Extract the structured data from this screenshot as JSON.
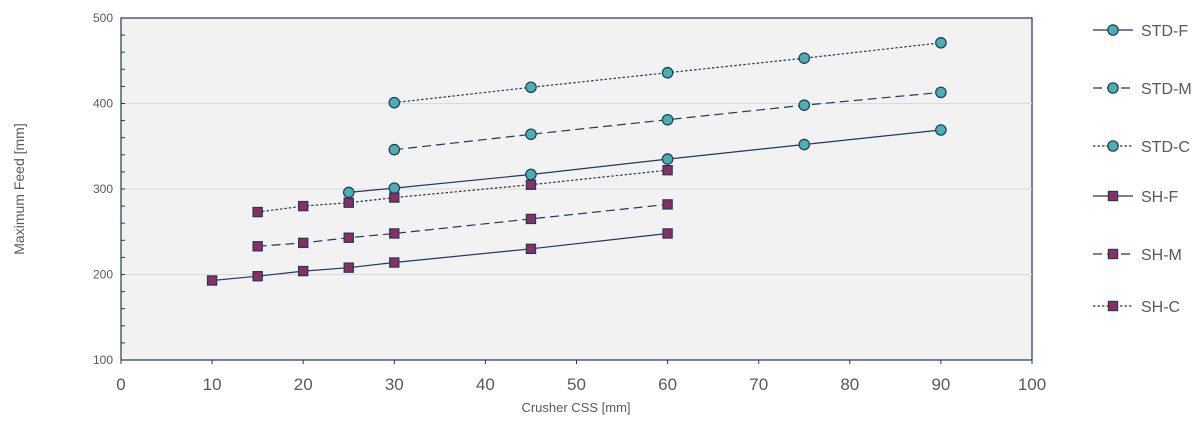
{
  "chart_data": {
    "type": "line",
    "title": "",
    "xlabel": "Crusher  CSS [mm]",
    "ylabel": "Maximum Feed [mm]",
    "xlim": [
      0,
      100
    ],
    "ylim": [
      100,
      500
    ],
    "xticks": [
      "0",
      "10",
      "20",
      "30",
      "40",
      "50",
      "60",
      "70",
      "80",
      "90",
      "100"
    ],
    "yticks": [
      "100",
      "200",
      "300",
      "400",
      "500"
    ],
    "grid": true,
    "legend_position": "right",
    "series": [
      {
        "name": "STD-F",
        "marker": "circle",
        "dash": "solid",
        "color": "#4BAFB0",
        "points": [
          [
            25,
            296
          ],
          [
            30,
            301
          ],
          [
            45,
            317
          ],
          [
            60,
            335
          ],
          [
            75,
            352
          ],
          [
            90,
            369
          ]
        ]
      },
      {
        "name": "STD-M",
        "marker": "circle",
        "dash": "dashed",
        "color": "#4BAFB0",
        "points": [
          [
            30,
            346
          ],
          [
            45,
            364
          ],
          [
            60,
            381
          ],
          [
            75,
            398
          ],
          [
            90,
            413
          ]
        ]
      },
      {
        "name": "STD-C",
        "marker": "circle",
        "dash": "dotted",
        "color": "#4BAFB0",
        "points": [
          [
            30,
            401
          ],
          [
            45,
            419
          ],
          [
            60,
            436
          ],
          [
            75,
            453
          ],
          [
            90,
            471
          ]
        ]
      },
      {
        "name": "SH-F",
        "marker": "square",
        "dash": "solid",
        "color": "#8B2E62",
        "points": [
          [
            10,
            193
          ],
          [
            15,
            198
          ],
          [
            20,
            204
          ],
          [
            25,
            208
          ],
          [
            30,
            214
          ],
          [
            45,
            230
          ],
          [
            60,
            248
          ]
        ]
      },
      {
        "name": "SH-M",
        "marker": "square",
        "dash": "dashed",
        "color": "#8B2E62",
        "points": [
          [
            15,
            233
          ],
          [
            20,
            237
          ],
          [
            25,
            243
          ],
          [
            30,
            248
          ],
          [
            45,
            265
          ],
          [
            60,
            282
          ]
        ]
      },
      {
        "name": "SH-C",
        "marker": "square",
        "dash": "dotted",
        "color": "#8B2E62",
        "points": [
          [
            15,
            273
          ],
          [
            20,
            280
          ],
          [
            25,
            284
          ],
          [
            30,
            290
          ],
          [
            45,
            305
          ],
          [
            60,
            322
          ]
        ]
      }
    ],
    "colors": {
      "line": "#1F3A5A",
      "plot_background": "#F2F2F2",
      "gridline": "#D9D9D9",
      "axis_text": "#595959"
    }
  }
}
